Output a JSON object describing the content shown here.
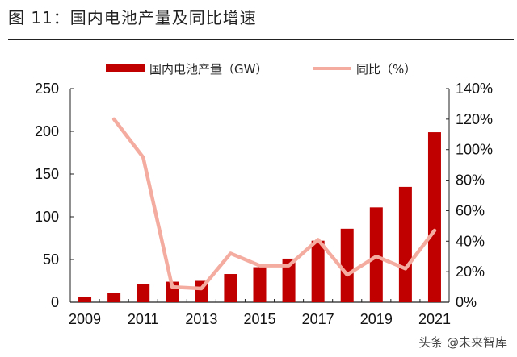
{
  "title": "图 11：国内电池产量及同比增速",
  "watermark": "头条 @未来智库",
  "chart_data": {
    "type": "bar+line",
    "title": "图 11：国内电池产量及同比增速",
    "categories": [
      "2009",
      "2010",
      "2011",
      "2012",
      "2013",
      "2014",
      "2015",
      "2016",
      "2017",
      "2018",
      "2019",
      "2020",
      "2021"
    ],
    "x_tick_labels": [
      "2009",
      "2011",
      "2013",
      "2015",
      "2017",
      "2019",
      "2021"
    ],
    "series": [
      {
        "name": "国内电池产量（GW）",
        "type": "bar",
        "axis": "left",
        "color": "#c00000",
        "values": [
          6,
          11,
          21,
          24,
          25,
          33,
          41,
          51,
          72,
          86,
          111,
          135,
          199
        ]
      },
      {
        "name": "同比（%）",
        "type": "line",
        "axis": "right",
        "color": "#f4aca0",
        "values": [
          null,
          120,
          95,
          10,
          9,
          32,
          24,
          24,
          41,
          18,
          30,
          22,
          47
        ]
      }
    ],
    "y_left": {
      "range": [
        0,
        250
      ],
      "ticks": [
        "0",
        "50",
        "100",
        "150",
        "200",
        "250"
      ]
    },
    "y_right": {
      "range": [
        0,
        140
      ],
      "ticks": [
        "0%",
        "20%",
        "40%",
        "60%",
        "80%",
        "100%",
        "120%",
        "140%"
      ]
    },
    "legend": "top",
    "grid": false
  }
}
